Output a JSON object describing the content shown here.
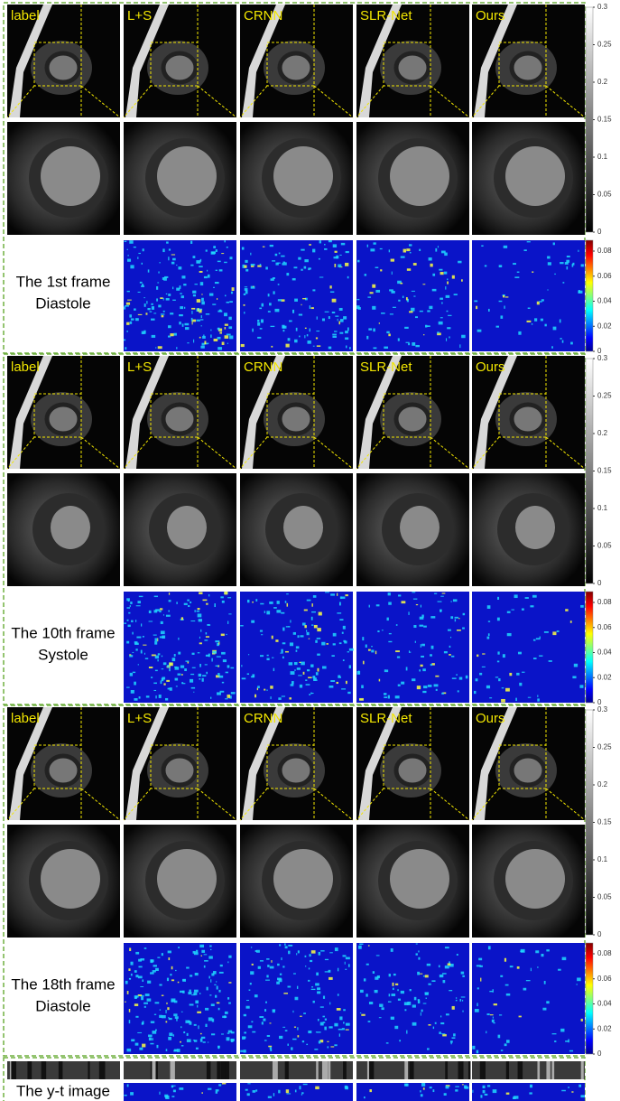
{
  "columns": [
    "label",
    "L+S",
    "CRNN",
    "SLR-Net",
    "Ours"
  ],
  "panels": [
    {
      "caption": [
        "The 1st frame",
        "Diastole"
      ]
    },
    {
      "caption": [
        "The 10th frame",
        "Systole"
      ]
    },
    {
      "caption": [
        "The 18th frame",
        "Diastole"
      ]
    }
  ],
  "gray_colorbar_ticks": [
    0,
    0.05,
    0.1,
    0.15,
    0.2,
    0.25,
    0.3
  ],
  "error_colorbar_ticks": [
    0,
    0.02,
    0.04,
    0.06,
    0.08
  ],
  "yt_caption": "The y-t image"
}
